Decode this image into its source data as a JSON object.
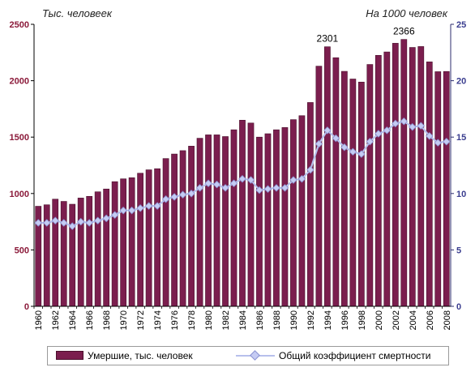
{
  "chart_data": {
    "type": "bar",
    "title": "",
    "left_axis_unit": "Тыс. человеек",
    "right_axis_unit": "На 1000 человек",
    "categories": [
      "1960",
      "1961",
      "1962",
      "1963",
      "1964",
      "1965",
      "1966",
      "1967",
      "1968",
      "1969",
      "1970",
      "1971",
      "1972",
      "1973",
      "1974",
      "1975",
      "1976",
      "1977",
      "1978",
      "1979",
      "1980",
      "1981",
      "1982",
      "1983",
      "1984",
      "1985",
      "1986",
      "1987",
      "1988",
      "1989",
      "1990",
      "1991",
      "1992",
      "1993",
      "1994",
      "1995",
      "1996",
      "1997",
      "1998",
      "1999",
      "2000",
      "2001",
      "2002",
      "2003",
      "2004",
      "2005",
      "2006",
      "2007",
      "2008"
    ],
    "x_tick_labels": [
      "1960",
      "1962",
      "1964",
      "1966",
      "1968",
      "1970",
      "1972",
      "1974",
      "1976",
      "1978",
      "1980",
      "1982",
      "1984",
      "1986",
      "1988",
      "1990",
      "1992",
      "1994",
      "1996",
      "1998",
      "2000",
      "2002",
      "2004",
      "2006",
      "2008"
    ],
    "ylim_left": [
      0,
      2500
    ],
    "yticks_left": [
      "0",
      "500",
      "1000",
      "1500",
      "2000",
      "2500"
    ],
    "ylim_right": [
      0,
      25
    ],
    "yticks_right": [
      "0",
      "5",
      "10",
      "15",
      "20",
      "25"
    ],
    "grid": false,
    "legend_position": "bottom",
    "series": [
      {
        "name": "Умершие, тыс. человек",
        "kind": "bar",
        "axis": "left",
        "color": "#7b1e4e",
        "values": [
          887,
          900,
          950,
          930,
          905,
          960,
          975,
          1015,
          1040,
          1105,
          1130,
          1140,
          1180,
          1210,
          1220,
          1310,
          1350,
          1380,
          1420,
          1490,
          1520,
          1520,
          1505,
          1565,
          1650,
          1625,
          1500,
          1530,
          1565,
          1585,
          1655,
          1690,
          1807,
          2129,
          2301,
          2204,
          2083,
          2015,
          1988,
          2144,
          2225,
          2255,
          2332,
          2366,
          2295,
          2303,
          2167,
          2080,
          2082
        ]
      },
      {
        "name": "Общий коэффициент смертности",
        "kind": "line",
        "axis": "right",
        "color": "#c5cbf3",
        "values": [
          7.4,
          7.4,
          7.6,
          7.4,
          7.1,
          7.5,
          7.4,
          7.6,
          7.8,
          8.1,
          8.5,
          8.5,
          8.7,
          8.9,
          8.9,
          9.5,
          9.7,
          9.9,
          10.0,
          10.5,
          10.9,
          10.8,
          10.5,
          10.9,
          11.3,
          11.2,
          10.3,
          10.4,
          10.5,
          10.5,
          11.2,
          11.3,
          12.1,
          14.4,
          15.6,
          14.9,
          14.1,
          13.7,
          13.5,
          14.6,
          15.3,
          15.6,
          16.2,
          16.4,
          15.9,
          16.0,
          15.1,
          14.5,
          14.6
        ]
      }
    ],
    "annotations": [
      {
        "text": "2301",
        "category": "1994"
      },
      {
        "text": "2366",
        "category": "2003"
      }
    ]
  }
}
